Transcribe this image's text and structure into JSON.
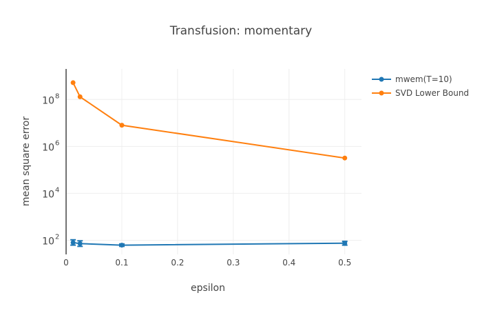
{
  "chart_data": {
    "type": "line",
    "title": "Transfusion: momentary",
    "xlabel": "epsilon",
    "ylabel": "mean square error",
    "y_scale": "log",
    "xlim": [
      0,
      0.53
    ],
    "ylim": [
      25,
      2000000000
    ],
    "x_ticks": [
      0,
      0.1,
      0.2,
      0.3,
      0.4,
      0.5
    ],
    "x_tick_labels": [
      "0",
      "0.1",
      "0.2",
      "0.3",
      "0.4",
      "0.5"
    ],
    "y_ticks": [
      100,
      10000,
      1000000,
      100000000
    ],
    "y_tick_bases": [
      "10",
      "10",
      "10",
      "10"
    ],
    "y_tick_exponents": [
      "2",
      "4",
      "6",
      "8"
    ],
    "grid": true,
    "legend_position": "top-right",
    "series": [
      {
        "name": "mwem(T=10)",
        "color": "#1f77b4",
        "x": [
          0.0125,
          0.025,
          0.1,
          0.5
        ],
        "y": [
          80,
          72,
          62,
          75
        ],
        "error_low": [
          62,
          55,
          55,
          62
        ],
        "error_high": [
          105,
          95,
          70,
          90
        ]
      },
      {
        "name": "SVD Lower Bound",
        "color": "#ff7f0e",
        "x": [
          0.0125,
          0.025,
          0.1,
          0.5
        ],
        "y": [
          520000000,
          130000000,
          8000000,
          320000
        ]
      }
    ]
  }
}
